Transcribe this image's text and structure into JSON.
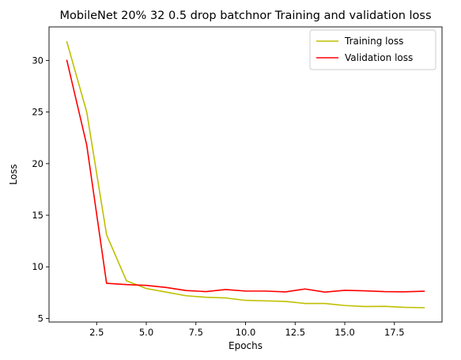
{
  "chart_data": {
    "type": "line",
    "title": "MobileNet 20% 32 0.5 drop batchnor Training and validation loss",
    "xlabel": "Epochs",
    "ylabel": "Loss",
    "xlim": [
      0.1,
      19.9
    ],
    "ylim": [
      4.65,
      33.25
    ],
    "xticks": [
      2.5,
      5.0,
      7.5,
      10.0,
      12.5,
      15.0,
      17.5
    ],
    "xtick_labels": [
      "2.5",
      "5.0",
      "7.5",
      "10.0",
      "12.5",
      "15.0",
      "17.5"
    ],
    "yticks": [
      5,
      10,
      15,
      20,
      25,
      30
    ],
    "ytick_labels": [
      "5",
      "10",
      "15",
      "20",
      "25",
      "30"
    ],
    "grid": false,
    "legend": "top-right",
    "x": [
      1,
      2,
      3,
      4,
      5,
      6,
      7,
      8,
      9,
      10,
      11,
      12,
      13,
      14,
      15,
      16,
      17,
      18,
      19
    ],
    "series": [
      {
        "name": "Training loss",
        "color": "#bfbf00",
        "values": [
          31.8,
          25.0,
          13.1,
          8.65,
          7.9,
          7.55,
          7.2,
          7.05,
          6.98,
          6.75,
          6.7,
          6.65,
          6.45,
          6.45,
          6.25,
          6.15,
          6.17,
          6.07,
          6.04
        ]
      },
      {
        "name": "Validation loss",
        "color": "#ff0000",
        "values": [
          30.0,
          21.8,
          8.4,
          8.28,
          8.2,
          8.0,
          7.7,
          7.6,
          7.8,
          7.65,
          7.65,
          7.57,
          7.85,
          7.55,
          7.72,
          7.67,
          7.6,
          7.58,
          7.63
        ]
      }
    ]
  }
}
